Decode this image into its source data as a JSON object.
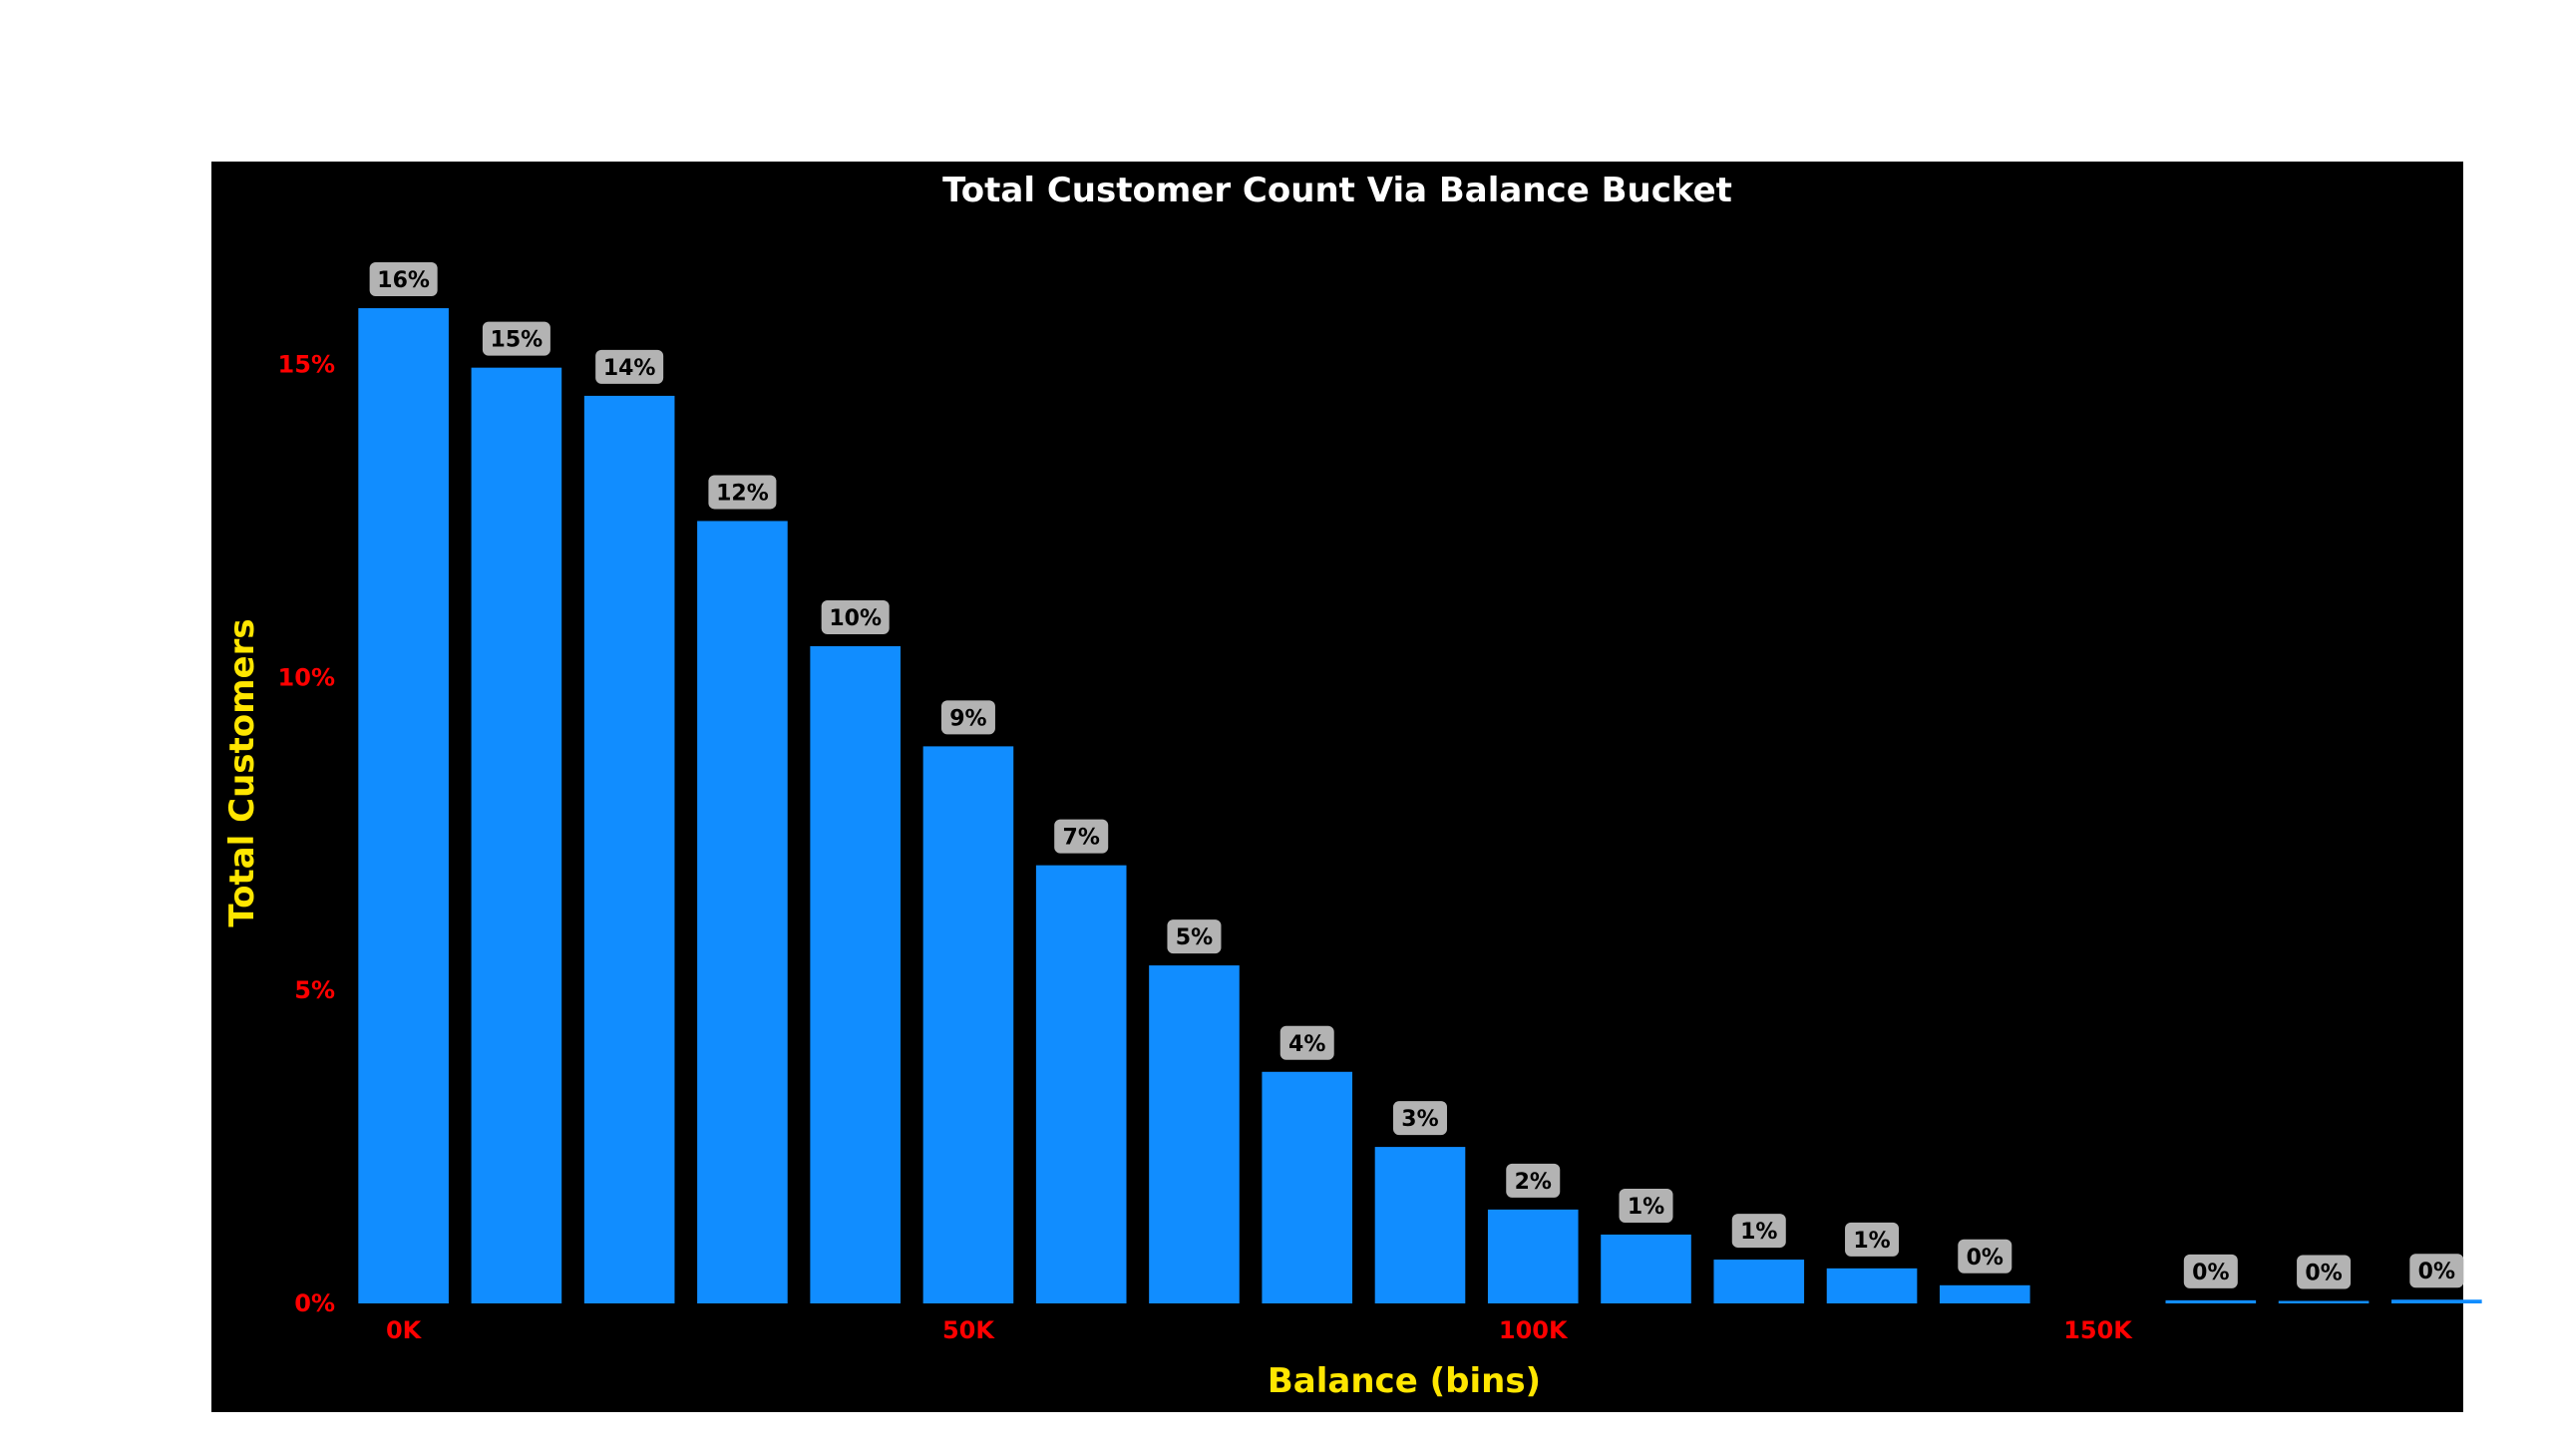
{
  "chart_data": {
    "type": "bar",
    "title": "Total Customer Count Via Balance Bucket",
    "xlabel": "Balance (bins)",
    "ylabel": "Total Customers",
    "x": [
      0,
      10000,
      20000,
      30000,
      40000,
      50000,
      60000,
      70000,
      80000,
      90000,
      100000,
      110000,
      120000,
      130000,
      140000,
      160000,
      170000,
      180000
    ],
    "values": [
      15.9,
      14.95,
      14.5,
      12.5,
      10.5,
      8.9,
      7.0,
      5.4,
      3.7,
      2.5,
      1.5,
      1.1,
      0.7,
      0.56,
      0.29,
      0.05,
      0.04,
      0.06
    ],
    "data_labels": [
      "16%",
      "15%",
      "14%",
      "12%",
      "10%",
      "9%",
      "7%",
      "5%",
      "4%",
      "3%",
      "2%",
      "1%",
      "1%",
      "1%",
      "0%",
      "0%",
      "0%",
      "0%"
    ],
    "bin_width": 10000,
    "ylim": [
      0,
      17
    ],
    "xlim": [
      -5000,
      182000
    ],
    "x_ticks": [
      0,
      50000,
      100000,
      150000
    ],
    "x_tick_labels": [
      "0K",
      "50K",
      "100K",
      "150K"
    ],
    "y_ticks": [
      0,
      5,
      10,
      15
    ],
    "y_tick_labels": [
      "0%",
      "5%",
      "10%",
      "15%"
    ],
    "grid": false,
    "colors": {
      "bar": "#118DFF",
      "background": "#000000",
      "title": "#ffffff",
      "axis_title": "#FFE600",
      "tick": "#FF0000",
      "label_box": "#B3B3B3",
      "label_text": "#000000"
    }
  }
}
